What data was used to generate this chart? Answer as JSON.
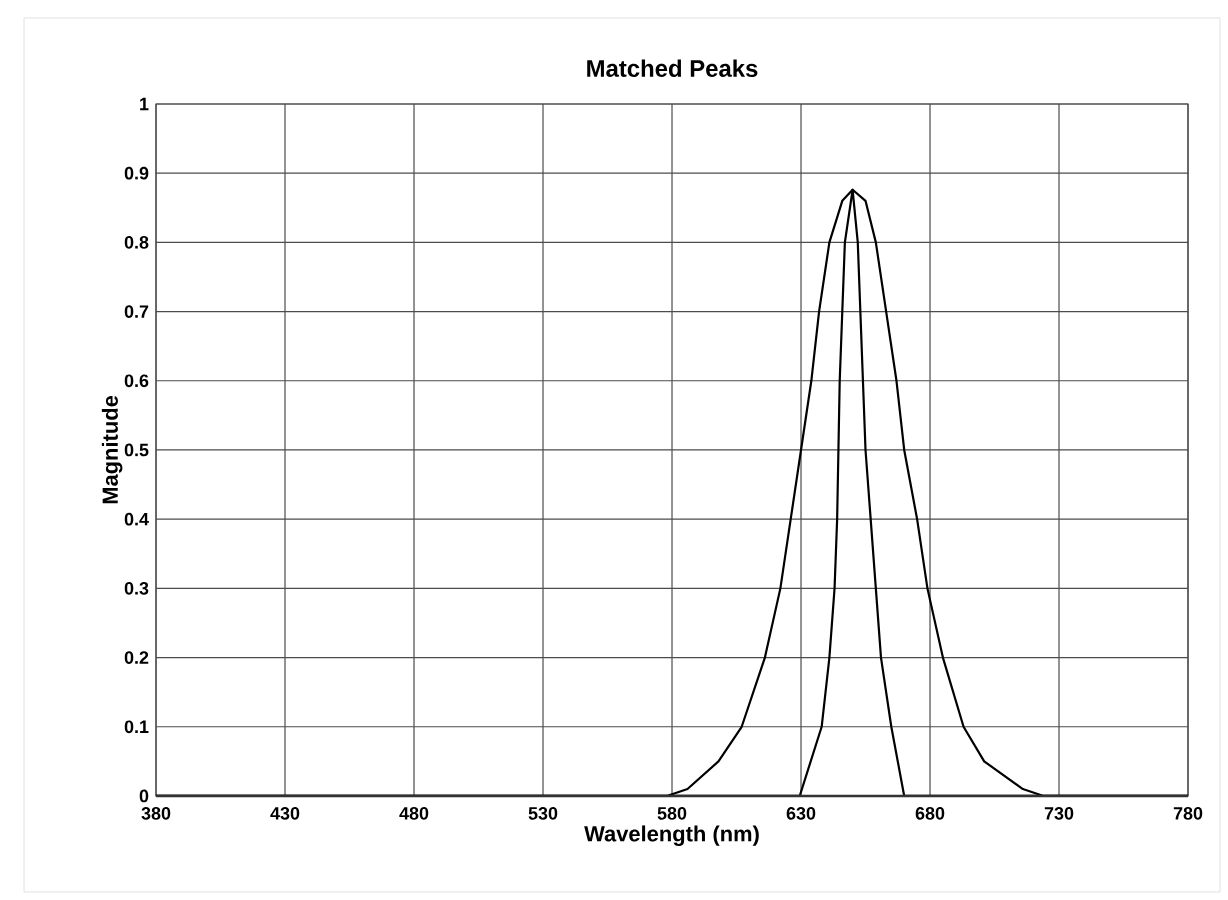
{
  "chart_data": {
    "type": "line",
    "title": "Matched Peaks",
    "xlabel": "Wavelength (nm)",
    "ylabel": "Magnitude",
    "xlim": [
      380,
      780
    ],
    "xticks": [
      380,
      430,
      480,
      530,
      580,
      630,
      680,
      730,
      780
    ],
    "ylim": [
      0,
      1
    ],
    "yticks": [
      0,
      0.1,
      0.2,
      0.3,
      0.4,
      0.5,
      0.6,
      0.7,
      0.8,
      0.9,
      1
    ],
    "grid": true,
    "marker": "none",
    "line_style": "solid",
    "series": [
      {
        "color": "#000000",
        "x": [
          380,
          578,
          586,
          598,
          607,
          616,
          622,
          626,
          630,
          634,
          637,
          641,
          646,
          650,
          655,
          659,
          663,
          667,
          670,
          675,
          679,
          685,
          693,
          701,
          716,
          724,
          780
        ],
        "values": [
          0,
          0,
          0.01,
          0.05,
          0.1,
          0.2,
          0.3,
          0.4,
          0.5,
          0.6,
          0.7,
          0.8,
          0.86,
          0.876,
          0.86,
          0.8,
          0.7,
          0.6,
          0.5,
          0.4,
          0.3,
          0.2,
          0.1,
          0.05,
          0.01,
          0,
          0
        ]
      },
      {
        "color": "#000000",
        "x": [
          380,
          629.5,
          638,
          641,
          643,
          644,
          644.5,
          645,
          646,
          647,
          650,
          652,
          653,
          654,
          655,
          657,
          659,
          661,
          665,
          670,
          780
        ],
        "values": [
          0,
          0,
          0.1,
          0.2,
          0.3,
          0.4,
          0.5,
          0.6,
          0.7,
          0.8,
          0.876,
          0.8,
          0.7,
          0.6,
          0.5,
          0.4,
          0.3,
          0.2,
          0.1,
          0,
          0
        ]
      }
    ]
  }
}
